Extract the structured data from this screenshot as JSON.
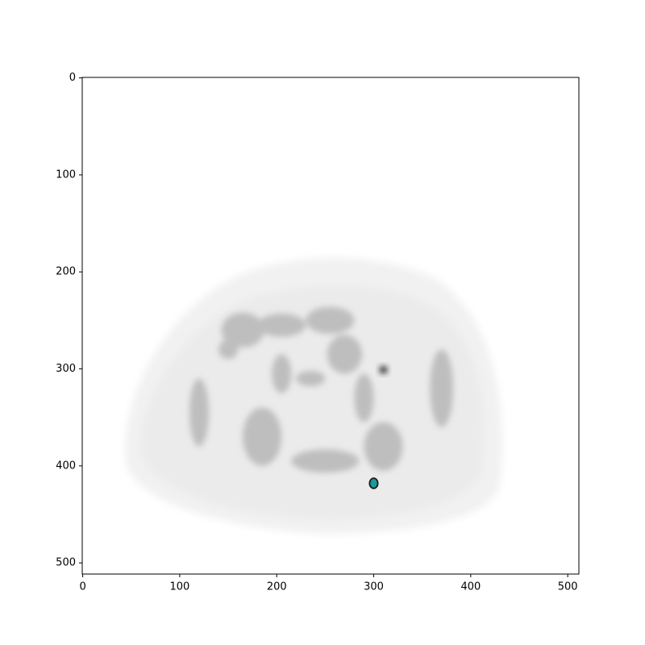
{
  "chart_data": {
    "type": "image",
    "xlim": [
      -0.5,
      511.5
    ],
    "ylim": [
      511.5,
      -0.5
    ],
    "xticks": [
      0,
      100,
      200,
      300,
      400,
      500
    ],
    "yticks": [
      0,
      100,
      200,
      300,
      400,
      500
    ]
  }
}
